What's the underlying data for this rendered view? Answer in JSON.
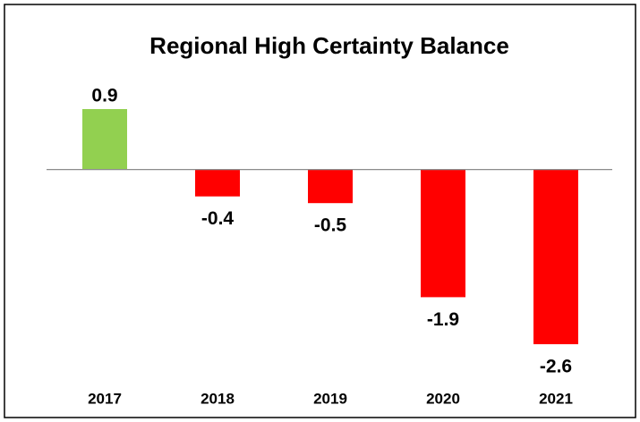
{
  "chart_data": {
    "type": "bar",
    "title": "Regional High Certainty Balance",
    "categories": [
      "2017",
      "2018",
      "2019",
      "2020",
      "2021"
    ],
    "values": [
      0.9,
      -0.4,
      -0.5,
      -1.9,
      -2.6
    ],
    "colors": [
      "#92d050",
      "#ff0000",
      "#ff0000",
      "#ff0000",
      "#ff0000"
    ]
  }
}
